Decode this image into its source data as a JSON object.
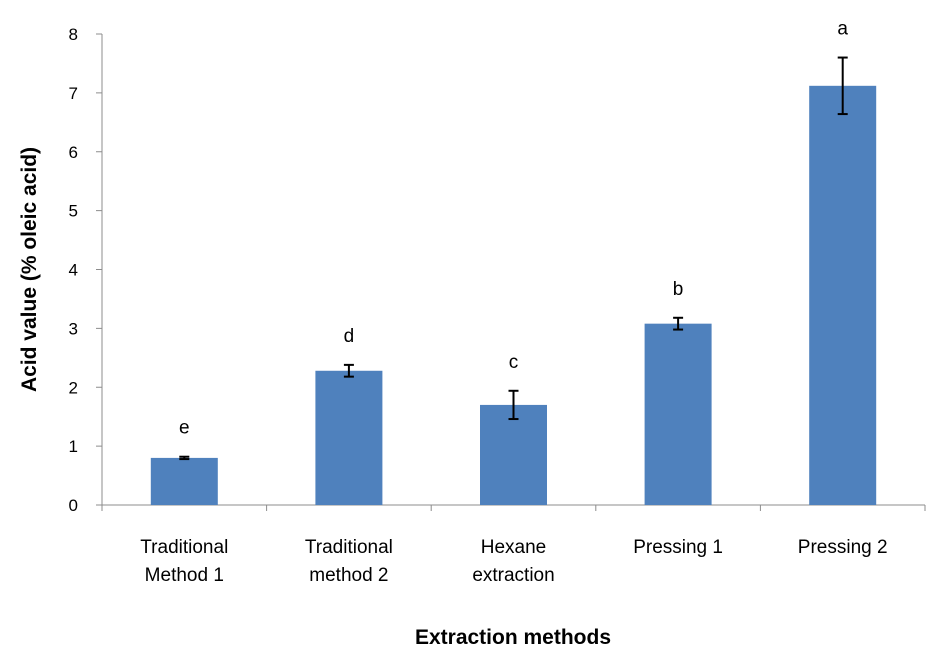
{
  "chart_data": {
    "type": "bar",
    "title": "",
    "xlabel": "Extraction methods",
    "ylabel": "Acid value (% oleic acid)",
    "ylim": [
      0,
      8
    ],
    "yticks": [
      "0",
      "1",
      "2",
      "3",
      "4",
      "5",
      "6",
      "7",
      "8"
    ],
    "grid": false,
    "categories": [
      [
        "Traditional",
        "Method 1"
      ],
      [
        "Traditional",
        "method 2"
      ],
      [
        "Hexane",
        "extraction"
      ],
      [
        "Pressing 1"
      ],
      [
        "Pressing 2"
      ]
    ],
    "values": [
      0.8,
      2.28,
      1.7,
      3.08,
      7.12
    ],
    "errors": [
      0.02,
      0.1,
      0.24,
      0.1,
      0.48
    ],
    "significance_letters": [
      "e",
      "d",
      "c",
      "b",
      "a"
    ],
    "bar_color": "#4f81bd"
  }
}
